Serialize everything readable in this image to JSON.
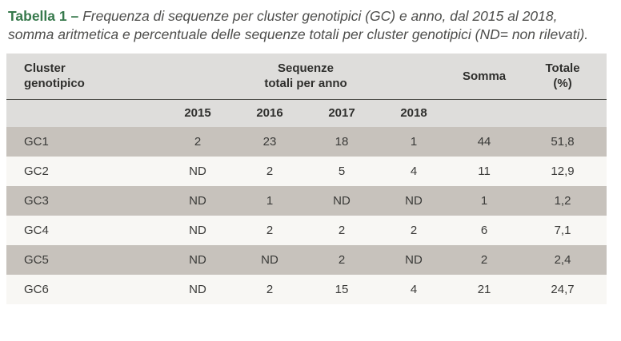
{
  "caption": {
    "label": "Tabella 1 –",
    "text": " Frequenza di sequenze per cluster genotipici (GC) e anno, dal 2015 al 2018, somma aritmetica e percentuale delle sequenze totali per cluster genotipici (ND= non rilevati)."
  },
  "table": {
    "headers": {
      "cluster_line1": "Cluster",
      "cluster_line2": "genotipico",
      "group_line1": "Sequenze",
      "group_line2": "totali per anno",
      "years": [
        "2015",
        "2016",
        "2017",
        "2018"
      ],
      "somma": "Somma",
      "totale_line1": "Totale",
      "totale_line2": "(%)"
    }
  },
  "chart_data": {
    "type": "table",
    "title": "Tabella 1 – Frequenza di sequenze per cluster genotipici (GC) e anno, dal 2015 al 2018",
    "columns": [
      "Cluster genotipico",
      "2015",
      "2016",
      "2017",
      "2018",
      "Somma",
      "Totale (%)"
    ],
    "rows": [
      [
        "GC1",
        "2",
        "23",
        "18",
        "1",
        "44",
        "51,8"
      ],
      [
        "GC2",
        "ND",
        "2",
        "5",
        "4",
        "11",
        "12,9"
      ],
      [
        "GC3",
        "ND",
        "1",
        "ND",
        "ND",
        "1",
        "1,2"
      ],
      [
        "GC4",
        "ND",
        "2",
        "2",
        "2",
        "6",
        "7,1"
      ],
      [
        "GC5",
        "ND",
        "ND",
        "2",
        "ND",
        "2",
        "2,4"
      ],
      [
        "GC6",
        "ND",
        "2",
        "15",
        "4",
        "21",
        "24,7"
      ]
    ]
  },
  "colors": {
    "caption_label_green": "#37794c",
    "caption_text_gray": "#4e4e4c",
    "header_bg": "#dedddb",
    "row_dark_bg": "#c7c2bc",
    "row_light_bg": "#f8f7f4",
    "header_rule": "#44443f",
    "table_text": "#3a3a38"
  }
}
